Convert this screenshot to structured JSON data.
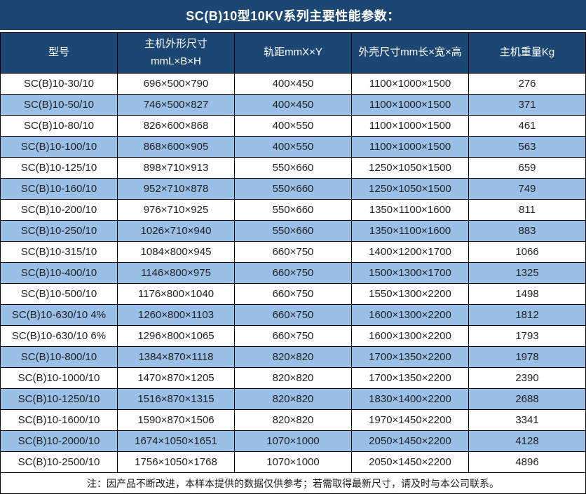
{
  "title": "SC(B)10型10KV系列主要性能参数：",
  "table": {
    "headers": [
      "型号",
      "主机外形尺寸\nmmL×B×H",
      "轨距mmX×Y",
      "外壳尺寸mm长×宽×高",
      "主机重量Kg"
    ],
    "rows": [
      [
        "SC(B)10-30/10",
        "696×500×790",
        "400×450",
        "1100×1000×1500",
        "276"
      ],
      [
        "SC(B)10-50/10",
        "746×500×827",
        "400×450",
        "1100×1000×1500",
        "371"
      ],
      [
        "SC(B)10-80/10",
        "826×600×868",
        "400×550",
        "1100×1000×1500",
        "461"
      ],
      [
        "SC(B)10-100/10",
        "868×600×905",
        "400×550",
        "1100×1000×1500",
        "563"
      ],
      [
        "SC(B)10-125/10",
        "898×710×913",
        "550×660",
        "1250×1050×1500",
        "659"
      ],
      [
        "SC(B)10-160/10",
        "952×710×878",
        "550×660",
        "1250×1050×1500",
        "749"
      ],
      [
        "SC(B)10-200/10",
        "976×710×925",
        "550×660",
        "1350×1100×1600",
        "811"
      ],
      [
        "SC(B)10-250/10",
        "1026×710×940",
        "550×660",
        "1350×1100×1600",
        "883"
      ],
      [
        "SC(B)10-315/10",
        "1084×800×945",
        "660×750",
        "1400×1200×1700",
        "1066"
      ],
      [
        "SC(B)10-400/10",
        "1146×800×975",
        "660×750",
        "1500×1300×1700",
        "1325"
      ],
      [
        "SC(B)10-500/10",
        "1176×800×1040",
        "660×750",
        "1550×1300×2200",
        "1498"
      ],
      [
        "SC(B)10-630/10 4%",
        "1260×800×1103",
        "660×750",
        "1600×1300×2200",
        "1812"
      ],
      [
        "SC(B)10-630/10 6%",
        "1296×800×1065",
        "660×750",
        "1600×1300×2200",
        "1793"
      ],
      [
        "SC(B)10-800/10",
        "1384×870×1118",
        "820×820",
        "1700×1350×2200",
        "1978"
      ],
      [
        "SC(B)10-1000/10",
        "1470×870×1205",
        "820×820",
        "1700×1350×2200",
        "2390"
      ],
      [
        "SC(B)10-1250/10",
        "1516×870×1315",
        "820×820",
        "1830×1400×2200",
        "2688"
      ],
      [
        "SC(B)10-1600/10",
        "1590×870×1506",
        "820×820",
        "1970×1450×2200",
        "3341"
      ],
      [
        "SC(B)10-2000/10",
        "1674×1050×1651",
        "1070×1000",
        "2050×1450×2200",
        "4128"
      ],
      [
        "SC(B)10-2500/10",
        "1756×1050×1768",
        "1070×1000",
        "2050×1450×2200",
        "4896"
      ]
    ]
  },
  "note": "注：因产品不断改进，本样本提供的数据仅供参考；若需取得最新尺寸，请及时与本公司联系。",
  "colors": {
    "header_background": "#1d4773",
    "header_text": "#ffffff",
    "stripe_row_background": "#9bc0e8",
    "grid_border": "#000000",
    "body_text": "#212121"
  }
}
